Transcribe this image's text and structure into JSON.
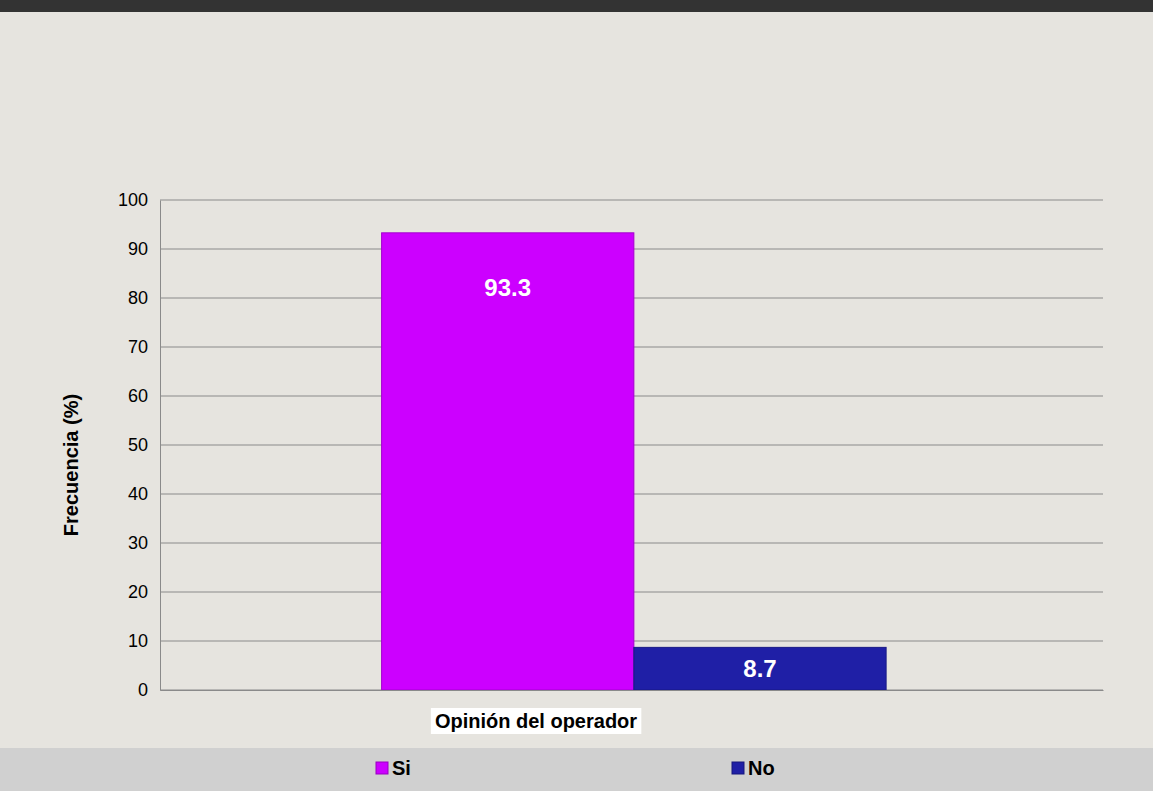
{
  "chart_data": {
    "type": "bar",
    "x_label": "Opinión del operador",
    "y_label": "Frecuencia (%)",
    "categories": [
      null
    ],
    "series": [
      {
        "name": "Si",
        "color": "#cc00ff",
        "values": [
          93.3
        ]
      },
      {
        "name": "No",
        "color": "#1f1fa6",
        "values": [
          8.7
        ]
      }
    ],
    "ylim": [
      0,
      100
    ],
    "yticks": [
      0,
      10,
      20,
      30,
      40,
      50,
      60,
      70,
      80,
      90,
      100
    ],
    "grid": true,
    "legend": "bottom",
    "data_labels": true,
    "tick_labels": "y"
  }
}
